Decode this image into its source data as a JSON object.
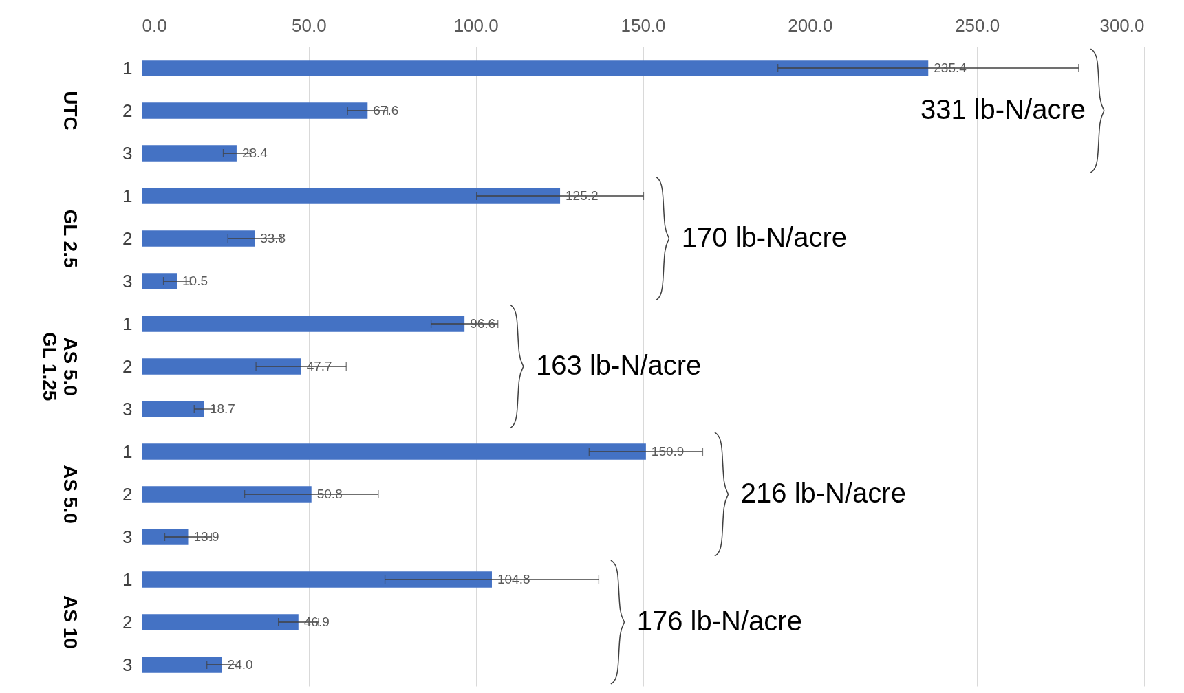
{
  "chart_data": {
    "type": "bar",
    "orientation": "horizontal",
    "categories": [
      "1",
      "2",
      "3",
      "1",
      "2",
      "3",
      "1",
      "2",
      "3",
      "1",
      "2",
      "3",
      "1",
      "2",
      "3"
    ],
    "values": [
      235.4,
      67.6,
      28.4,
      125.2,
      33.8,
      10.5,
      96.6,
      47.7,
      18.7,
      150.9,
      50.8,
      13.9,
      104.8,
      46.9,
      24.0
    ],
    "errors": [
      45,
      6,
      4,
      25,
      8,
      4,
      10,
      13.5,
      3,
      17,
      20,
      7,
      32,
      6,
      4.5
    ],
    "color": "#4472c4",
    "xlim": [
      0,
      300
    ],
    "xticks": [
      {
        "value": 0,
        "label": "0.0"
      },
      {
        "value": 50,
        "label": "50.0"
      },
      {
        "value": 100,
        "label": "100.0"
      },
      {
        "value": 150,
        "label": "150.0"
      },
      {
        "value": 200,
        "label": "200.0"
      },
      {
        "value": 250,
        "label": "250.0"
      },
      {
        "value": 300,
        "label": "300.0"
      }
    ],
    "grid": "x",
    "value_labels": [
      "235.4",
      "67.6",
      "28.4",
      "125.2",
      "33.8",
      "10.5",
      "96.6",
      "47.7",
      "18.7",
      "150.9",
      "50.8",
      "13.9",
      "104.8",
      "46.9",
      "24.0"
    ],
    "annotations": [
      "UTC",
      "GL 2.5",
      "AS 5.0\nGL 1.25",
      "AS 5.0",
      "AS 10",
      "331 lb-N/acre",
      "170 lb-N/acre",
      "163 lb-N/acre",
      "216 lb-N/acre",
      "176 lb-N/acre"
    ]
  }
}
